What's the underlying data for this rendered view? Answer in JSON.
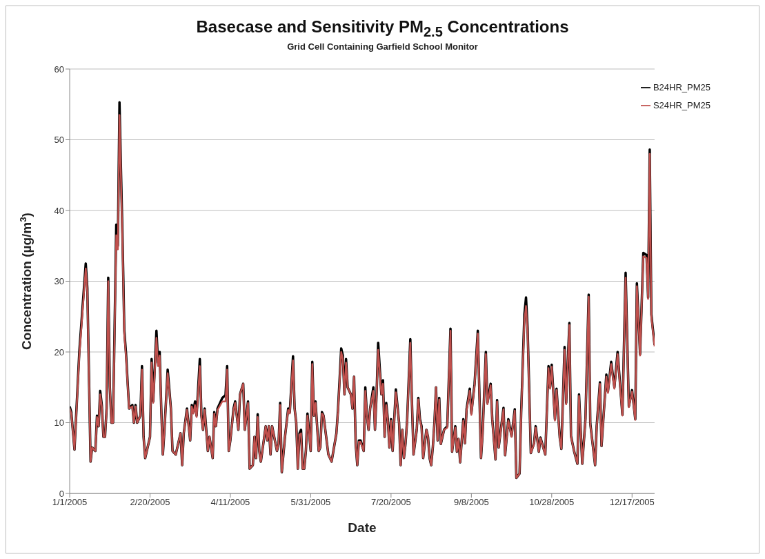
{
  "chart_data": {
    "type": "line",
    "title": "Basecase and Sensitivity PM$_{2.5}$ Concentrations",
    "subtitle": "Grid Cell Containing Garfield School Monitor",
    "xlabel": "Date",
    "ylabel": "Concentration (µg/m$^{3}$)",
    "xlim": [
      "2005-01-01",
      "2005-12-31"
    ],
    "xticks": [
      {
        "value": "2005-01-01",
        "label": "1/1/2005"
      },
      {
        "value": "2005-02-20",
        "label": "2/20/2005"
      },
      {
        "value": "2005-04-11",
        "label": "4/11/2005"
      },
      {
        "value": "2005-05-31",
        "label": "5/31/2005"
      },
      {
        "value": "2005-07-20",
        "label": "7/20/2005"
      },
      {
        "value": "2005-09-08",
        "label": "9/8/2005"
      },
      {
        "value": "2005-10-28",
        "label": "10/28/2005"
      },
      {
        "value": "2005-12-17",
        "label": "12/17/2005"
      }
    ],
    "ylim": [
      0,
      60
    ],
    "yticks": [
      0,
      10,
      20,
      30,
      40,
      50,
      60
    ],
    "grid": "y",
    "legend": "top right",
    "marker": "none",
    "line_style": "solid",
    "x": [
      "2005-01-01",
      "2005-01-02",
      "2005-01-04",
      "2005-01-07",
      "2005-01-11",
      "2005-01-12",
      "2005-01-14",
      "2005-01-15",
      "2005-01-17",
      "2005-01-18",
      "2005-01-19",
      "2005-01-20",
      "2005-01-21",
      "2005-01-22",
      "2005-01-23",
      "2005-01-24",
      "2005-01-25",
      "2005-01-26",
      "2005-01-27",
      "2005-01-28",
      "2005-01-30",
      "2005-01-31",
      "2005-02-01",
      "2005-02-02",
      "2005-02-03",
      "2005-02-04",
      "2005-02-05",
      "2005-02-07",
      "2005-02-09",
      "2005-02-10",
      "2005-02-11",
      "2005-02-12",
      "2005-02-14",
      "2005-02-15",
      "2005-02-16",
      "2005-02-17",
      "2005-02-19",
      "2005-02-20",
      "2005-02-21",
      "2005-02-22",
      "2005-02-24",
      "2005-02-25",
      "2005-02-26",
      "2005-02-27",
      "2005-02-28",
      "2005-03-01",
      "2005-03-03",
      "2005-03-05",
      "2005-03-06",
      "2005-03-08",
      "2005-03-11",
      "2005-03-12",
      "2005-03-13",
      "2005-03-15",
      "2005-03-17",
      "2005-03-18",
      "2005-03-19",
      "2005-03-20",
      "2005-03-21",
      "2005-03-23",
      "2005-03-24",
      "2005-03-25",
      "2005-03-26",
      "2005-03-28",
      "2005-03-29",
      "2005-03-31",
      "2005-04-01",
      "2005-04-02",
      "2005-04-03",
      "2005-04-06",
      "2005-04-08",
      "2005-04-09",
      "2005-04-10",
      "2005-04-11",
      "2005-04-13",
      "2005-04-14",
      "2005-04-16",
      "2005-04-17",
      "2005-04-19",
      "2005-04-20",
      "2005-04-22",
      "2005-04-23",
      "2005-04-25",
      "2005-04-26",
      "2005-04-27",
      "2005-04-28",
      "2005-04-29",
      "2005-04-30",
      "2005-05-03",
      "2005-05-04",
      "2005-05-05",
      "2005-05-06",
      "2005-05-07",
      "2005-05-10",
      "2005-05-11",
      "2005-05-12",
      "2005-05-13",
      "2005-05-15",
      "2005-05-17",
      "2005-05-18",
      "2005-05-20",
      "2005-05-21",
      "2005-05-22",
      "2005-05-23",
      "2005-05-24",
      "2005-05-25",
      "2005-05-26",
      "2005-05-27",
      "2005-05-28",
      "2005-05-29",
      "2005-05-31",
      "2005-06-01",
      "2005-06-02",
      "2005-06-03",
      "2005-06-05",
      "2005-06-06",
      "2005-06-07",
      "2005-06-08",
      "2005-06-11",
      "2005-06-13",
      "2005-06-16",
      "2005-06-17",
      "2005-06-19",
      "2005-06-20",
      "2005-06-21",
      "2005-06-22",
      "2005-06-23",
      "2005-06-25",
      "2005-06-26",
      "2005-06-27",
      "2005-06-28",
      "2005-06-29",
      "2005-06-30",
      "2005-07-01",
      "2005-07-03",
      "2005-07-04",
      "2005-07-05",
      "2005-07-06",
      "2005-07-07",
      "2005-07-09",
      "2005-07-10",
      "2005-07-11",
      "2005-07-12",
      "2005-07-14",
      "2005-07-15",
      "2005-07-16",
      "2005-07-17",
      "2005-07-18",
      "2005-07-19",
      "2005-07-20",
      "2005-07-21",
      "2005-07-22",
      "2005-07-23",
      "2005-07-25",
      "2005-07-26",
      "2005-07-27",
      "2005-07-28",
      "2005-07-29",
      "2005-07-30",
      "2005-08-01",
      "2005-08-02",
      "2005-08-03",
      "2005-08-05",
      "2005-08-06",
      "2005-08-07",
      "2005-08-08",
      "2005-08-09",
      "2005-08-11",
      "2005-08-12",
      "2005-08-13",
      "2005-08-14",
      "2005-08-15",
      "2005-08-16",
      "2005-08-17",
      "2005-08-18",
      "2005-08-19",
      "2005-08-20",
      "2005-08-22",
      "2005-08-24",
      "2005-08-26",
      "2005-08-27",
      "2005-08-29",
      "2005-08-30",
      "2005-08-31",
      "2005-09-01",
      "2005-09-03",
      "2005-09-04",
      "2005-09-05",
      "2005-09-07",
      "2005-09-08",
      "2005-09-10",
      "2005-09-12",
      "2005-09-14",
      "2005-09-15",
      "2005-09-17",
      "2005-09-18",
      "2005-09-20",
      "2005-09-21",
      "2005-09-23",
      "2005-09-24",
      "2005-09-25",
      "2005-09-28",
      "2005-09-29",
      "2005-10-01",
      "2005-10-03",
      "2005-10-05",
      "2005-10-06",
      "2005-10-08",
      "2005-10-09",
      "2005-10-11",
      "2005-10-12",
      "2005-10-13",
      "2005-10-15",
      "2005-10-17",
      "2005-10-18",
      "2005-10-20",
      "2005-10-21",
      "2005-10-24",
      "2005-10-26",
      "2005-10-27",
      "2005-10-28",
      "2005-10-30",
      "2005-10-31",
      "2005-11-02",
      "2005-11-03",
      "2005-11-05",
      "2005-11-06",
      "2005-11-08",
      "2005-11-09",
      "2005-11-11",
      "2005-11-13",
      "2005-11-14",
      "2005-11-16",
      "2005-11-18",
      "2005-11-20",
      "2005-11-21",
      "2005-11-24",
      "2005-11-25",
      "2005-11-27",
      "2005-11-28",
      "2005-12-01",
      "2005-12-02",
      "2005-12-04",
      "2005-12-06",
      "2005-12-08",
      "2005-12-11",
      "2005-12-13",
      "2005-12-15",
      "2005-12-17",
      "2005-12-19",
      "2005-12-20",
      "2005-12-22",
      "2005-12-24",
      "2005-12-26",
      "2005-12-27",
      "2005-12-28",
      "2005-12-29",
      "2005-12-31"
    ],
    "series": [
      {
        "name": "B24HR_PM25",
        "color": "#000000",
        "values": [
          12.3,
          11.5,
          6.2,
          20,
          32.5,
          29,
          4.5,
          6.5,
          6,
          11,
          9.5,
          14.5,
          12.5,
          8,
          8,
          12,
          30.5,
          15,
          10,
          10,
          38,
          35,
          55.3,
          45,
          35,
          23,
          20,
          12,
          12.5,
          10,
          12.5,
          10,
          11,
          18,
          8,
          5,
          7,
          8,
          19,
          13,
          23,
          18.5,
          20,
          12,
          5.5,
          9,
          17.5,
          12,
          6,
          5.5,
          8.5,
          4,
          8.5,
          12,
          7.5,
          12.5,
          11.5,
          13,
          11,
          19,
          11,
          9,
          12,
          6,
          8,
          5,
          11.5,
          9.5,
          12,
          13.5,
          13.9,
          18,
          6,
          7.5,
          12,
          13,
          9,
          14,
          15.5,
          9,
          13,
          3.5,
          4,
          8,
          5,
          11.2,
          6,
          4.5,
          9.5,
          7.5,
          9.5,
          5.5,
          9.5,
          6,
          7,
          12.8,
          3,
          8,
          12,
          11.5,
          19.4,
          12,
          10,
          3.5,
          8.5,
          9,
          3.5,
          3.5,
          6,
          11.3,
          6,
          18.6,
          11,
          13,
          6,
          6.5,
          11.5,
          11,
          5.5,
          4.5,
          8.5,
          11.8,
          20.5,
          19.5,
          14,
          19,
          15,
          14,
          12,
          16.5,
          7,
          4,
          7.5,
          7.5,
          6,
          15,
          11,
          9,
          12,
          15,
          9,
          14,
          21.3,
          14,
          16,
          8,
          12.8,
          10.5,
          6.5,
          10.5,
          6,
          10.5,
          14.7,
          10,
          4,
          9,
          5,
          7,
          10.2,
          21.8,
          13,
          5.5,
          9,
          13.5,
          10.5,
          9.5,
          5,
          9,
          8,
          5,
          4,
          6.5,
          10,
          15,
          7.5,
          13.5,
          7,
          9,
          9.5,
          23.3,
          5.9,
          9.5,
          5.9,
          7.7,
          4.4,
          10.5,
          7.1,
          11.9,
          14.8,
          11.3,
          15.5,
          23,
          5,
          8.5,
          20,
          12.8,
          15.5,
          10.5,
          4.8,
          13.2,
          6.5,
          12.1,
          5.4,
          10.5,
          8.1,
          11.9,
          2.2,
          2.8,
          11.5,
          25.3,
          27.7,
          23.3,
          5.7,
          7.1,
          9.5,
          5.9,
          7.9,
          5.5,
          18,
          15,
          18.2,
          10.5,
          14.8,
          7.9,
          6.3,
          20.7,
          12.8,
          24.1,
          8.1,
          5.9,
          4.2,
          14,
          4.2,
          10.5,
          28.1,
          9.9,
          4,
          9.5,
          15.7,
          6.7,
          16.8,
          14.4,
          18.6,
          15,
          20,
          11.1,
          31.2,
          12.3,
          14.6,
          10.5,
          29.7,
          19.7,
          34,
          33.7,
          27.7,
          48.6,
          25.3,
          21
        ]
      },
      {
        "name": "S24HR_PM25",
        "color": "#c0504d",
        "values": [
          12,
          11.3,
          6.2,
          19.5,
          31.8,
          28.5,
          4.5,
          6.5,
          6,
          10.8,
          9.5,
          14,
          12.3,
          8,
          8,
          11.8,
          30,
          15,
          10,
          10,
          36.5,
          34.5,
          53.5,
          44,
          34,
          22.5,
          19.5,
          12,
          12.3,
          10,
          12.3,
          10,
          11,
          17.5,
          8,
          5,
          7,
          8,
          18.5,
          12.8,
          22,
          18,
          19.5,
          12,
          5.5,
          9,
          17,
          12,
          6,
          5.5,
          8.5,
          4,
          8.5,
          11.8,
          7.5,
          12.3,
          11.3,
          12.5,
          10.8,
          18,
          10.8,
          9,
          11.8,
          6,
          8,
          5,
          11.3,
          9.5,
          11.8,
          13,
          13,
          17.5,
          6,
          7.5,
          11.8,
          12.8,
          9,
          14,
          15.5,
          9,
          12.8,
          3.5,
          4,
          8,
          5,
          10.8,
          6,
          4.5,
          9.5,
          7.5,
          9.5,
          5.5,
          9.5,
          6,
          7,
          12.5,
          3,
          8,
          11.8,
          11.3,
          18.8,
          12,
          10,
          3.5,
          8.3,
          8.5,
          3.5,
          3.5,
          6,
          11,
          6,
          18.3,
          11,
          12.8,
          6,
          6.5,
          11.3,
          11,
          5.5,
          4.5,
          8.5,
          11.5,
          20,
          19,
          14,
          18.5,
          15,
          14,
          12,
          16.5,
          7,
          4,
          7.3,
          7.3,
          6,
          14.5,
          11,
          9,
          12,
          14.5,
          9,
          14,
          20.3,
          14,
          15.5,
          8,
          12.5,
          10.3,
          6.5,
          10.3,
          6,
          10.3,
          14.3,
          10,
          4,
          9,
          5,
          7,
          10,
          21.3,
          13,
          5.5,
          9,
          13.3,
          10.3,
          9.3,
          5,
          9,
          8,
          5,
          4,
          6.5,
          10,
          15,
          7.5,
          13.3,
          7,
          9,
          9.3,
          23,
          5.9,
          9.3,
          5.9,
          7.7,
          4.4,
          10.3,
          7.1,
          11.7,
          14.5,
          11.1,
          15.3,
          22.6,
          5,
          8.3,
          19.7,
          12.6,
          15.3,
          10.3,
          4.8,
          13,
          6.5,
          11.9,
          5.4,
          10.3,
          8,
          11.7,
          2.2,
          2.8,
          11.2,
          24.5,
          26.5,
          22.8,
          5.7,
          7,
          9.3,
          5.9,
          7.8,
          5.5,
          17.7,
          14.8,
          17.9,
          10.3,
          14.6,
          7.8,
          6.3,
          20.3,
          12.6,
          23.8,
          8,
          5.9,
          4.2,
          13.8,
          4.2,
          10.3,
          27.8,
          9.8,
          4,
          9.3,
          15.5,
          6.7,
          16.5,
          14.2,
          18.3,
          14.8,
          19.7,
          11,
          30.5,
          12.2,
          14.4,
          10.4,
          29.3,
          19.5,
          33.5,
          33.3,
          27.5,
          48,
          25,
          20.8
        ]
      }
    ]
  }
}
